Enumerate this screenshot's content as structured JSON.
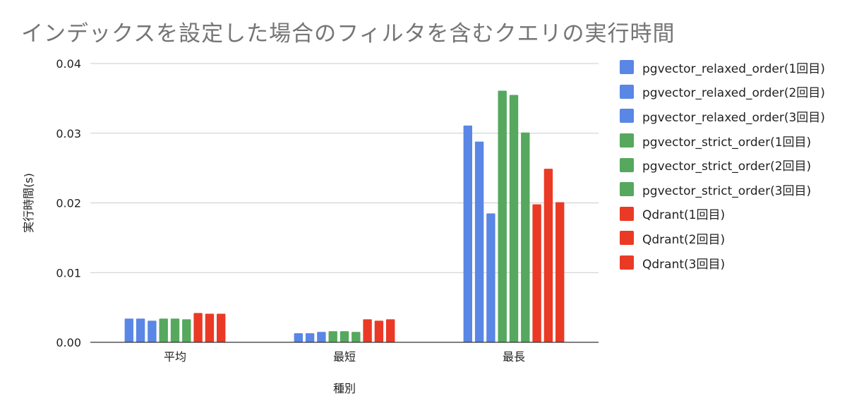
{
  "chart_data": {
    "type": "bar",
    "title": "インデックスを設定した場合のフィルタを含むクエリの実行時間",
    "xlabel": "種別",
    "ylabel": "実行時間(s)",
    "ylim": [
      0,
      0.04
    ],
    "yticks": [
      "0.00",
      "0.01",
      "0.02",
      "0.03",
      "0.04"
    ],
    "grid": true,
    "legend_position": "right",
    "categories": [
      "平均",
      "最短",
      "最長"
    ],
    "series": [
      {
        "name": "pgvector_relaxed_order(1回目)",
        "color": "#5a86e5",
        "values": [
          0.0034,
          0.0013,
          0.0311
        ]
      },
      {
        "name": "pgvector_relaxed_order(2回目)",
        "color": "#5a86e5",
        "values": [
          0.0034,
          0.0013,
          0.0288
        ]
      },
      {
        "name": "pgvector_relaxed_order(3回目)",
        "color": "#5a86e5",
        "values": [
          0.0031,
          0.0015,
          0.0185
        ]
      },
      {
        "name": "pgvector_strict_order(1回目)",
        "color": "#55a85e",
        "values": [
          0.0034,
          0.0016,
          0.0361
        ]
      },
      {
        "name": "pgvector_strict_order(2回目)",
        "color": "#55a85e",
        "values": [
          0.0034,
          0.0016,
          0.0355
        ]
      },
      {
        "name": "pgvector_strict_order(3回目)",
        "color": "#55a85e",
        "values": [
          0.0033,
          0.0015,
          0.0301
        ]
      },
      {
        "name": "Qdrant(1回目)",
        "color": "#ea3a25",
        "values": [
          0.0042,
          0.0033,
          0.0198
        ]
      },
      {
        "name": "Qdrant(2回目)",
        "color": "#ea3a25",
        "values": [
          0.0041,
          0.0031,
          0.0249
        ]
      },
      {
        "name": "Qdrant(3回目)",
        "color": "#ea3a25",
        "values": [
          0.0041,
          0.0033,
          0.0201
        ]
      }
    ]
  }
}
